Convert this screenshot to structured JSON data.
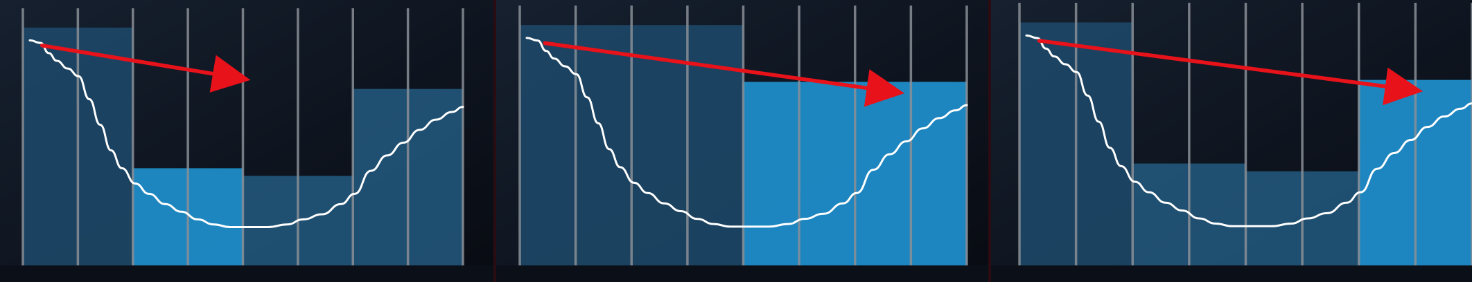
{
  "colors": {
    "background_dark": "#0b0f1a",
    "background_mid": "#141c2a",
    "block_dim": "#1d4a6b",
    "block_mid": "#235a80",
    "block_bright": "#1f8cc8",
    "grid_line": "#8a8f96",
    "curve": "#ffffff",
    "arrow": "#e8121a",
    "divider": "#2a0c12"
  },
  "panels": [
    {
      "id": "panel-1",
      "blocks": [
        {
          "name": "block-left",
          "from": 0,
          "to": 2,
          "level": 0.07,
          "tone": "dim"
        },
        {
          "name": "block-low-bright",
          "from": 2,
          "to": 4,
          "level": 0.62,
          "tone": "bright"
        },
        {
          "name": "block-low-mid",
          "from": 4,
          "to": 6,
          "level": 0.65,
          "tone": "mid"
        },
        {
          "name": "block-right",
          "from": 6,
          "to": 8,
          "level": 0.31,
          "tone": "mid"
        }
      ],
      "arrow": {
        "from": [
          0.35,
          0.14
        ],
        "to": [
          4.0,
          0.27
        ]
      }
    },
    {
      "id": "panel-2",
      "blocks": [
        {
          "name": "block-left",
          "from": 0,
          "to": 4,
          "level": 0.07,
          "tone": "dim"
        },
        {
          "name": "block-right-bright",
          "from": 4,
          "to": 8,
          "level": 0.29,
          "tone": "bright"
        }
      ],
      "arrow": {
        "from": [
          0.45,
          0.14
        ],
        "to": [
          6.75,
          0.33
        ]
      }
    },
    {
      "id": "panel-3",
      "blocks": [
        {
          "name": "block-left",
          "from": 0,
          "to": 2,
          "level": 0.07,
          "tone": "dim"
        },
        {
          "name": "block-mid-1",
          "from": 2,
          "to": 4,
          "level": 0.61,
          "tone": "mid"
        },
        {
          "name": "block-mid-2",
          "from": 4,
          "to": 6,
          "level": 0.64,
          "tone": "mid"
        },
        {
          "name": "block-right-bright",
          "from": 6,
          "to": 8,
          "level": 0.29,
          "tone": "bright"
        }
      ],
      "arrow": {
        "from": [
          0.35,
          0.14
        ],
        "to": [
          7.0,
          0.33
        ]
      }
    }
  ],
  "curve_profile": [
    [
      0.0,
      0.12
    ],
    [
      0.2,
      0.13
    ],
    [
      0.35,
      0.17
    ],
    [
      0.5,
      0.2
    ],
    [
      0.7,
      0.23
    ],
    [
      0.9,
      0.26
    ],
    [
      1.1,
      0.35
    ],
    [
      1.3,
      0.45
    ],
    [
      1.5,
      0.55
    ],
    [
      1.7,
      0.62
    ],
    [
      1.95,
      0.68
    ],
    [
      2.2,
      0.72
    ],
    [
      2.5,
      0.76
    ],
    [
      2.8,
      0.79
    ],
    [
      3.1,
      0.82
    ],
    [
      3.4,
      0.84
    ],
    [
      3.7,
      0.85
    ],
    [
      4.0,
      0.85
    ],
    [
      4.4,
      0.85
    ],
    [
      4.75,
      0.84
    ],
    [
      5.05,
      0.82
    ],
    [
      5.4,
      0.8
    ],
    [
      5.75,
      0.76
    ],
    [
      6.0,
      0.72
    ],
    [
      6.3,
      0.63
    ],
    [
      6.6,
      0.57
    ],
    [
      6.9,
      0.52
    ],
    [
      7.2,
      0.47
    ],
    [
      7.5,
      0.43
    ],
    [
      7.8,
      0.4
    ],
    [
      8.0,
      0.38
    ]
  ],
  "grid_line_count": 9
}
